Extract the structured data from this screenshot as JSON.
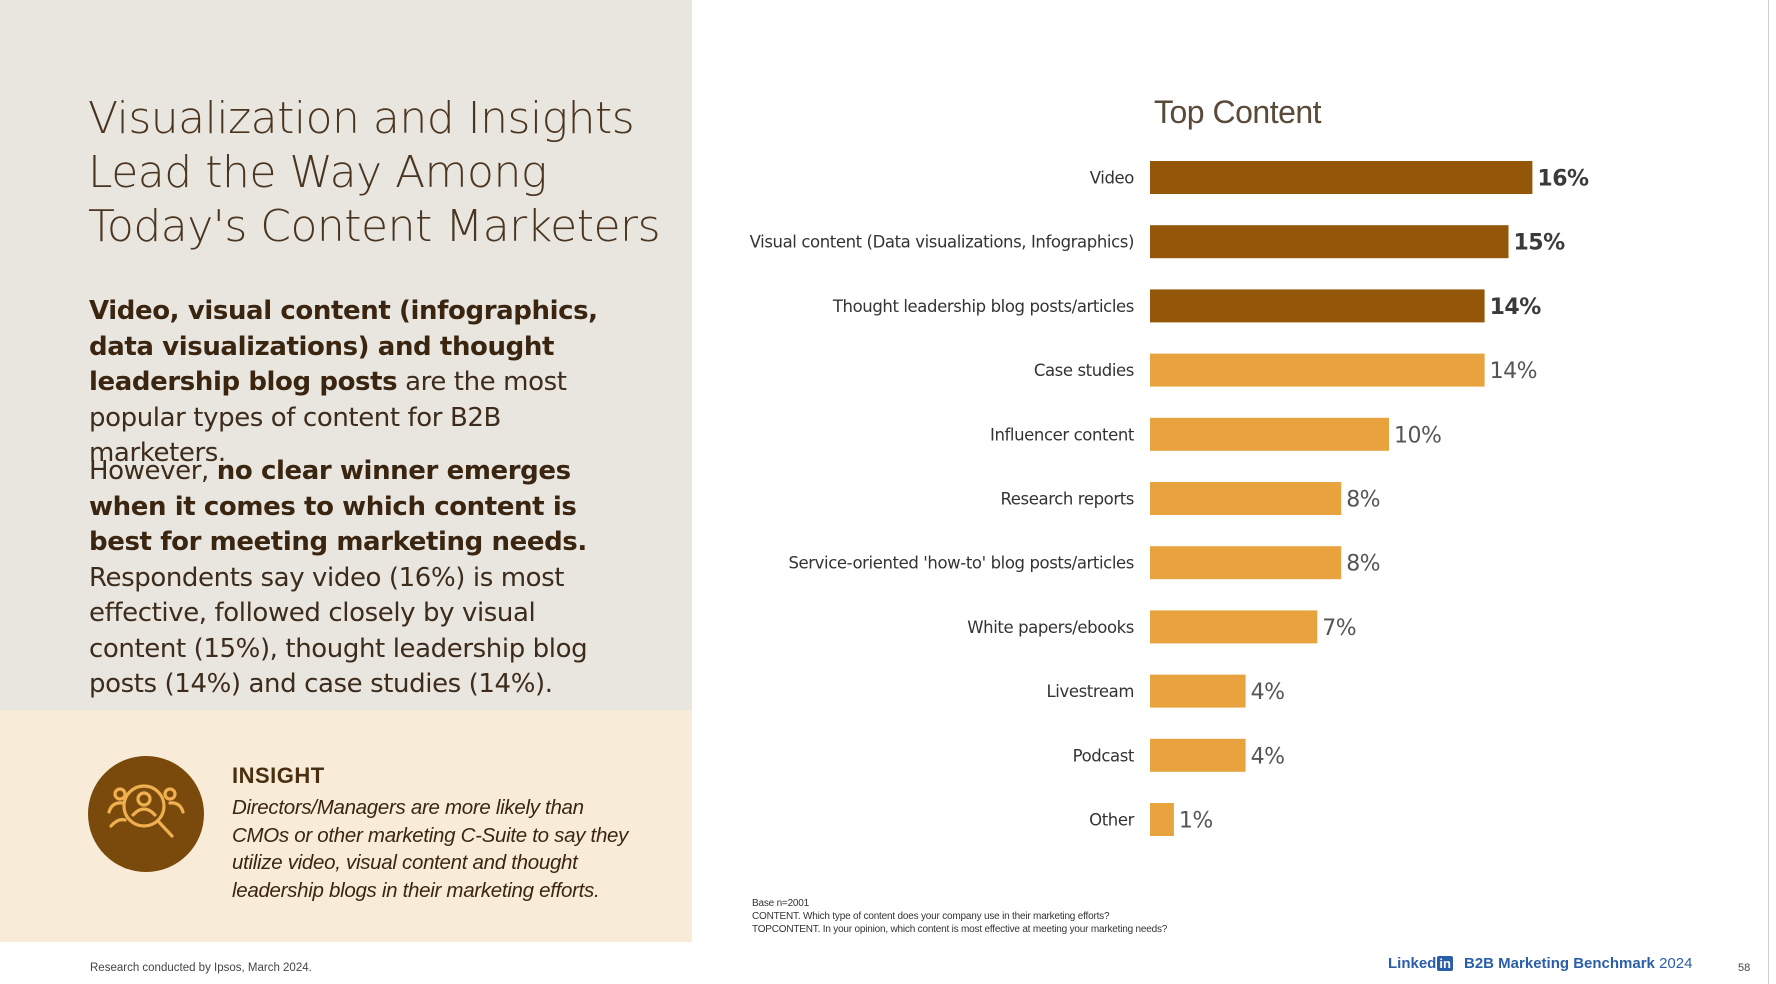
{
  "headline": [
    "Visualization and Insights",
    "Lead the Way Among",
    "Today's Content Marketers"
  ],
  "paragraph1": {
    "bold": "Video, visual content (infographics, data visualizations) and thought leadership blog posts",
    "rest": " are the most popular types of content for B2B marketers."
  },
  "paragraph2": {
    "lead": "However, ",
    "bold": "no clear winner emerges when it comes to which content is best for meeting marketing needs.",
    "rest": " Respondents say video (16%) is most effective, followed closely by visual content (15%), thought leadership blog posts (14%) and case studies (14%)."
  },
  "insight": {
    "title": "INSIGHT",
    "text": "Directors/Managers are more likely than CMOs or other marketing C-Suite to say they utilize video, visual content and thought leadership blogs in their marketing efforts.",
    "icon": "people-magnifier-icon"
  },
  "footer": {
    "source": "Research conducted by Ipsos, March 2024.",
    "brand_prefix": "Linked",
    "brand_in": "in",
    "brand_label": "B2B Marketing Benchmark",
    "brand_year": "2024",
    "page_number": "58"
  },
  "notes": [
    "Base n=2001",
    "CONTENT. Which type of content does your company use in their marketing efforts?",
    "TOPCONTENT. In your opinion, which content is most effective at meeting your marketing needs?"
  ],
  "colors": {
    "dark_bar": "#945708",
    "light_bar": "#e8a33e",
    "insight_circle": "#7a4a0c"
  },
  "chart_data": {
    "type": "bar",
    "orientation": "horizontal",
    "title": "Top Content",
    "categories": [
      "Video",
      "Visual content (Data visualizations, Infographics)",
      "Thought leadership blog posts/articles",
      "Case studies",
      "Influencer content",
      "Research reports",
      "Service-oriented 'how-to' blog posts/articles",
      "White papers/ebooks",
      "Livestream",
      "Podcast",
      "Other"
    ],
    "values": [
      16,
      15,
      14,
      14,
      10,
      8,
      8,
      7,
      4,
      4,
      1
    ],
    "value_labels": [
      "16%",
      "15%",
      "14%",
      "14%",
      "10%",
      "8%",
      "8%",
      "7%",
      "4%",
      "4%",
      "1%"
    ],
    "highlighted": [
      true,
      true,
      true,
      false,
      false,
      false,
      false,
      false,
      false,
      false,
      false
    ],
    "unit": "%"
  }
}
